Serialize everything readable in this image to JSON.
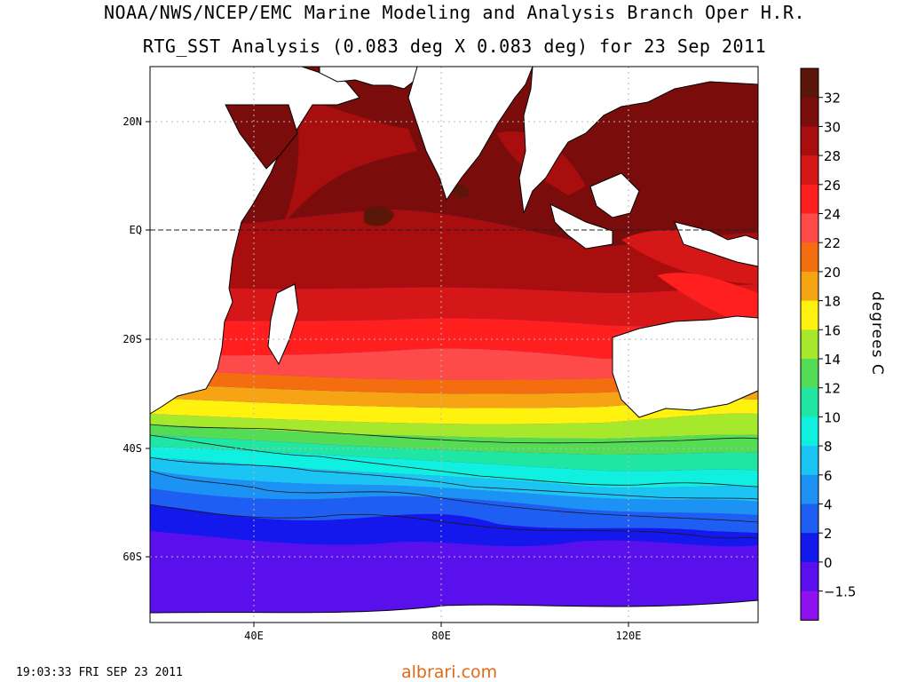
{
  "header": {
    "title_line1": "NOAA/NWS/NCEP/EMC Marine Modeling and Analysis Branch Oper H.R.",
    "title_line2": "RTG_SST Analysis (0.083 deg X 0.083 deg) for 23 Sep 2011"
  },
  "map": {
    "lat_labels": [
      "20N",
      "EQ",
      "20S",
      "40S",
      "60S"
    ],
    "lon_labels": [
      "40E",
      "80E",
      "120E"
    ],
    "lon_range": [
      18,
      148
    ],
    "lat_range": [
      -70,
      30
    ],
    "land_color": "#ffffff",
    "coastline_color": "#000000"
  },
  "colorbar": {
    "units": "degrees C",
    "tick_labels": [
      "32",
      "30",
      "28",
      "26",
      "24",
      "22",
      "20",
      "18",
      "16",
      "14",
      "12",
      "10",
      "8",
      "6",
      "4",
      "2",
      "0",
      "-1.5"
    ],
    "colors": [
      "#5a1608",
      "#7b0c0c",
      "#a80e0e",
      "#d51717",
      "#ff1f1f",
      "#ff4a4a",
      "#f46e10",
      "#f6a414",
      "#fff20e",
      "#a6e82c",
      "#55dc55",
      "#1fe6a2",
      "#10f0e0",
      "#1cc4f4",
      "#1c92f4",
      "#1f5ef2",
      "#1418ec",
      "#5a10ec",
      "#8e12f0"
    ]
  },
  "footer": {
    "timestamp": "19:03:33  FRI SEP 23 2011",
    "watermark": "albrari.com"
  }
}
